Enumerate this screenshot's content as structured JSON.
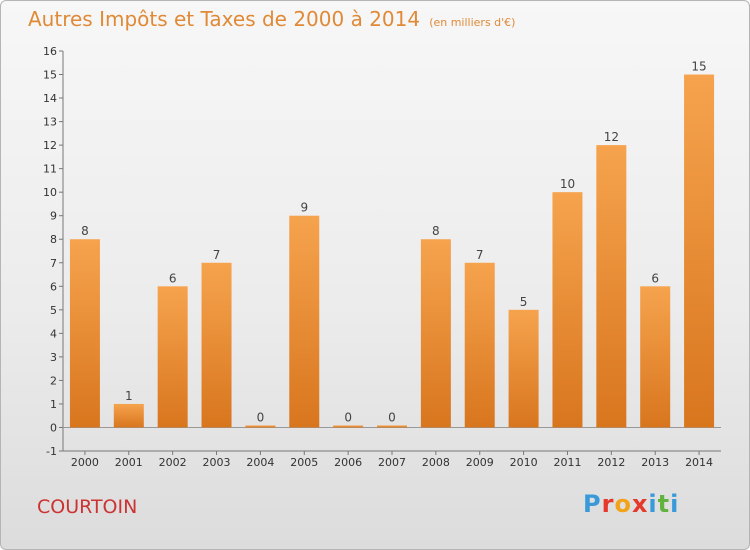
{
  "title": "Autres Impôts et Taxes de 2000 à 2014",
  "subtitle": "(en milliers d'€)",
  "commune": "COURTOIN",
  "logo": {
    "letters": [
      "P",
      "r",
      "o",
      "x",
      "i",
      "t",
      "i"
    ],
    "colors": [
      "#3a9ad9",
      "#e5392c",
      "#f3a31a",
      "#e5392c",
      "#3a9ad9",
      "#61b33e",
      "#3a9ad9"
    ]
  },
  "chart_data": {
    "type": "bar",
    "categories": [
      "2000",
      "2001",
      "2002",
      "2003",
      "2004",
      "2005",
      "2006",
      "2007",
      "2008",
      "2009",
      "2010",
      "2011",
      "2012",
      "2013",
      "2014"
    ],
    "values": [
      8,
      1,
      6,
      7,
      0,
      9,
      0,
      0,
      8,
      7,
      5,
      10,
      12,
      6,
      15
    ],
    "data_labels": [
      "8",
      "1",
      "6",
      "7",
      "0",
      "9",
      "0",
      "0",
      "8",
      "7",
      "5",
      "10",
      "12",
      "6",
      "15"
    ],
    "yticks": [
      "-1",
      "0",
      "1",
      "2",
      "3",
      "4",
      "5",
      "6",
      "7",
      "8",
      "9",
      "10",
      "11",
      "12",
      "13",
      "14",
      "15",
      "16"
    ],
    "ylim": [
      -1,
      16
    ],
    "bar_color_light": "#f6a34e",
    "bar_color_dark": "#d8761e",
    "grid": false
  }
}
